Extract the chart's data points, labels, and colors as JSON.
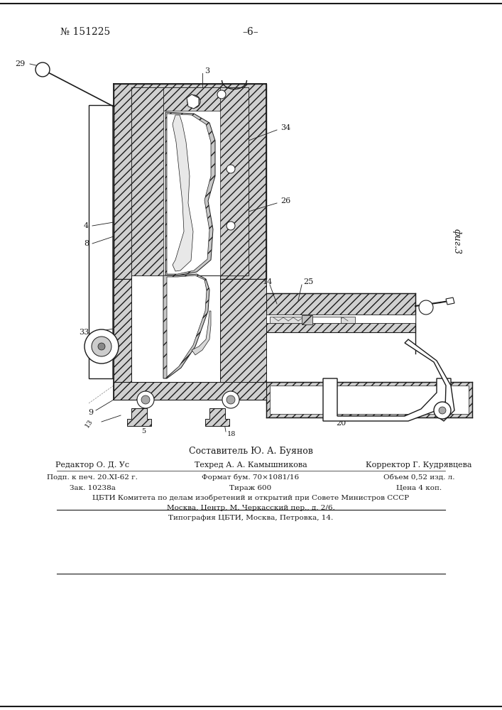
{
  "page_number": "№ 151225",
  "center_text": "–6–",
  "fig_label": "фиг.3",
  "composer_text": "Составитель Ю. А. Буянов",
  "info_lines": [
    [
      "Редактор О. Д. Ус",
      "Техред А. А. Камышникова",
      "Корректор Г. Кудрявцева"
    ],
    [
      "Подп. к печ. 20.XI-62 г.",
      "Формат бум. 70×1081/16",
      "Объем 0,52 изд. л."
    ],
    [
      "Зак. 10238а",
      "Тираж 600",
      "Цена 4 коп."
    ],
    [
      "ЦБТИ Комитета по делам изобретений и открытий при Совете Министров СССР"
    ],
    [
      "Москва, Центр, М. Черкасский пер., д. 2/6."
    ],
    [
      "Типография ЦБТИ, Москва, Петровка, 14."
    ]
  ],
  "bg_color": "#ffffff",
  "line_color": "#1a1a1a",
  "text_color": "#1a1a1a"
}
